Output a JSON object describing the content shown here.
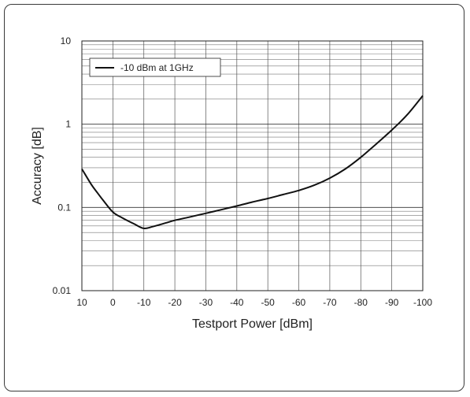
{
  "chart_data": {
    "type": "line",
    "xlabel": "Testport Power [dBm]",
    "ylabel": "Accuracy [dB]",
    "x_ticks": [
      10,
      0,
      -10,
      -20,
      -30,
      -40,
      -50,
      -60,
      -70,
      -80,
      -90,
      -100
    ],
    "x_tick_labels": [
      "10",
      "0",
      "-10",
      "-20",
      "-30",
      "-40",
      "-50",
      "-60",
      "-70",
      "-80",
      "-90",
      "-100"
    ],
    "xlim": [
      10,
      -100
    ],
    "y_scale": "log",
    "ylim": [
      0.01,
      10
    ],
    "y_ticks": [
      10,
      1,
      0.1,
      0.01
    ],
    "y_tick_labels": [
      "10",
      "1",
      "0.1",
      "0.01"
    ],
    "grid": true,
    "legend_position": "top-left",
    "series": [
      {
        "name": "-10 dBm at 1GHz",
        "color": "#111111",
        "x": [
          10,
          7,
          5,
          3,
          0,
          -3,
          -7,
          -10,
          -13,
          -17,
          -20,
          -25,
          -30,
          -35,
          -40,
          -45,
          -50,
          -55,
          -60,
          -65,
          -70,
          -75,
          -80,
          -85,
          -90,
          -95,
          -100
        ],
        "y": [
          0.29,
          0.19,
          0.15,
          0.12,
          0.088,
          0.075,
          0.063,
          0.056,
          0.059,
          0.065,
          0.07,
          0.077,
          0.085,
          0.094,
          0.104,
          0.116,
          0.128,
          0.143,
          0.16,
          0.185,
          0.225,
          0.29,
          0.4,
          0.58,
          0.85,
          1.3,
          2.2
        ]
      }
    ]
  }
}
